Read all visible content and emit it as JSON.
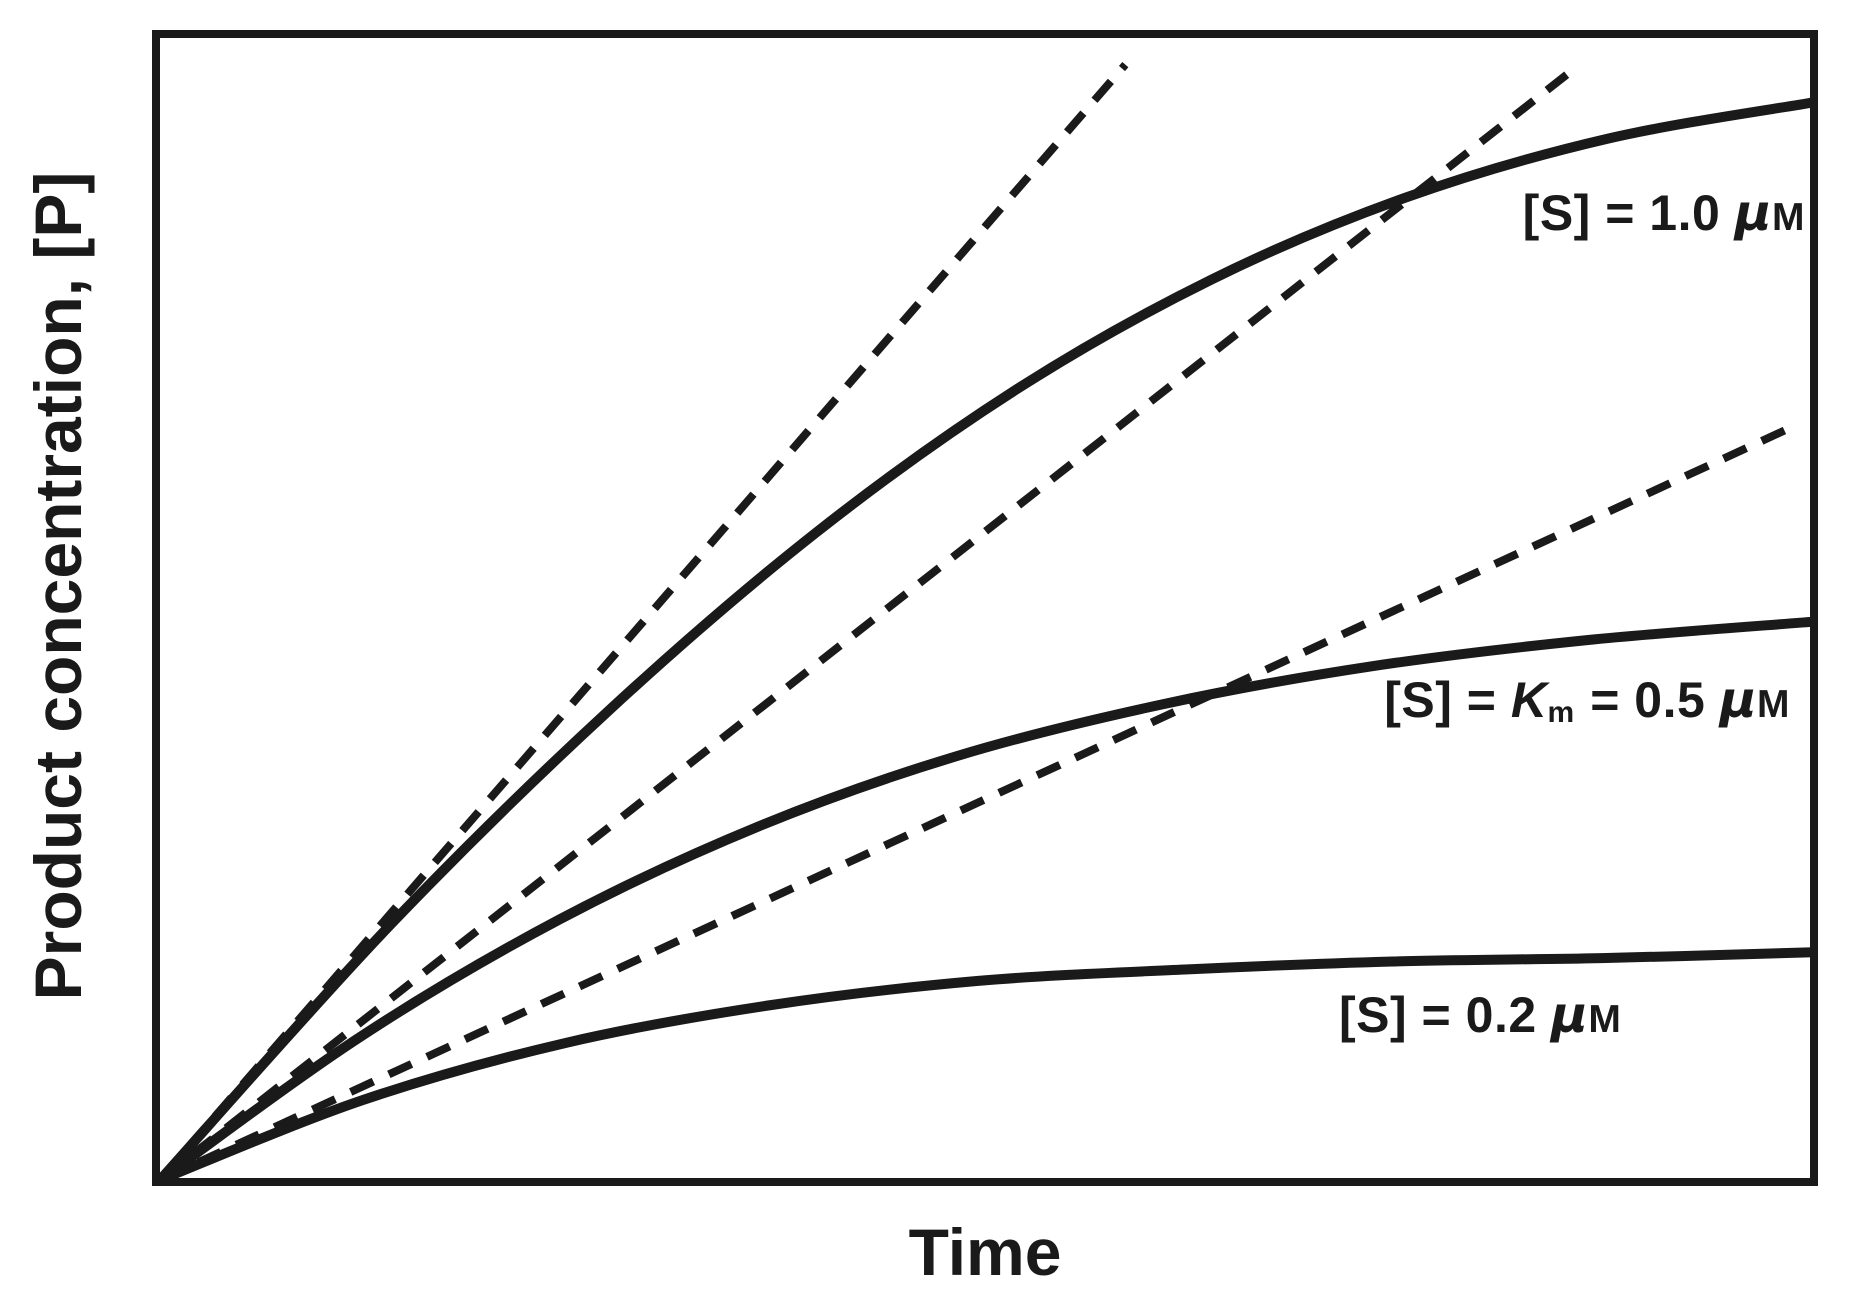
{
  "figure": {
    "background": "#ffffff",
    "ink_color": "#1a1a1a"
  },
  "chart_data": {
    "type": "line",
    "title": "",
    "xlabel": "Time",
    "ylabel": "Product concentration, [P]",
    "axes": {
      "x_ticks": [],
      "y_ticks": [],
      "grid": false,
      "frame": "full box, no tick marks",
      "units_note": "qualitative axes; point coordinates below are fractions of the plotted axis ranges (0-1)"
    },
    "legend_position": "inline labels beside curves",
    "series": [
      {
        "name": "[S] = 1.0 μM",
        "style": "solid",
        "points": [
          [
            0,
            0
          ],
          [
            0.14,
            0.224
          ],
          [
            0.272,
            0.411
          ],
          [
            0.397,
            0.566
          ],
          [
            0.517,
            0.69
          ],
          [
            0.636,
            0.787
          ],
          [
            0.754,
            0.859
          ],
          [
            0.875,
            0.91
          ],
          [
            1.0,
            0.942
          ]
        ]
      },
      {
        "name": "[S] = Km = 0.5 μM",
        "style": "solid",
        "points": [
          [
            0,
            0
          ],
          [
            0.122,
            0.126
          ],
          [
            0.242,
            0.228
          ],
          [
            0.362,
            0.309
          ],
          [
            0.483,
            0.371
          ],
          [
            0.607,
            0.416
          ],
          [
            0.733,
            0.449
          ],
          [
            0.864,
            0.472
          ],
          [
            1.0,
            0.488
          ]
        ]
      },
      {
        "name": "[S] = 0.2 μM",
        "style": "solid",
        "points": [
          [
            0,
            0
          ],
          [
            0.123,
            0.07
          ],
          [
            0.246,
            0.12
          ],
          [
            0.37,
            0.153
          ],
          [
            0.495,
            0.174
          ],
          [
            0.62,
            0.184
          ],
          [
            0.746,
            0.191
          ],
          [
            0.872,
            0.194
          ],
          [
            1.0,
            0.199
          ]
        ]
      }
    ],
    "initial_rate_tangents": [
      {
        "for": "[S] = 1.0 μM",
        "style": "dashed",
        "points": [
          [
            0,
            0
          ],
          [
            0.584,
            0.975
          ]
        ]
      },
      {
        "for": "[S] = Km = 0.5 μM",
        "style": "dashed",
        "points": [
          [
            0,
            0
          ],
          [
            0.857,
            0.973
          ]
        ]
      },
      {
        "for": "[S] = 0.2 μM",
        "style": "dashed",
        "points": [
          [
            0,
            0
          ],
          [
            0.984,
            0.656
          ]
        ]
      }
    ]
  },
  "labels": {
    "xlabel": "Time",
    "ylabel": "Product concentration, [P]",
    "curve1": {
      "pre": "[S] = 1.0 ",
      "mu": "μ",
      "unit": "M"
    },
    "curve2": {
      "pre": "[S] = ",
      "km_symbol": "K",
      "km_sub": "m",
      "mid": " = 0.5 ",
      "mu": "μ",
      "unit": "M"
    },
    "curve3": {
      "pre": "[S] = 0.2 ",
      "mu": "μ",
      "unit": "M"
    }
  }
}
